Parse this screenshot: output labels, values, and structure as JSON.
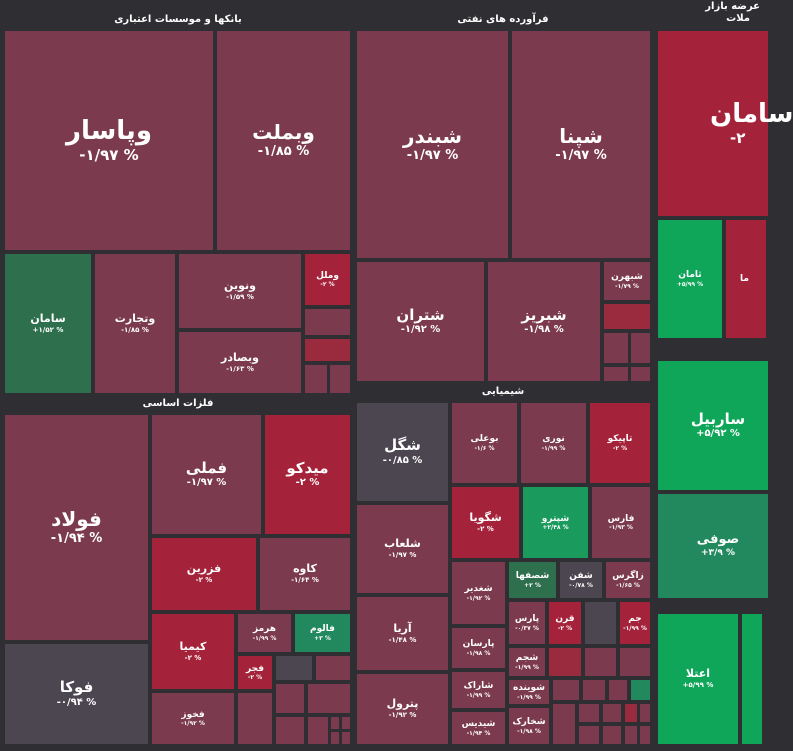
{
  "sections": {
    "banks": "بانکها و موسسات اعتباری",
    "oil": "فرآورده های نفتی",
    "market": "عرضه بازار",
    "market2": "ملات",
    "metals": "فلزات اساسی",
    "chem": "شیمیایی"
  },
  "tiles": {
    "vapasar": {
      "name": "وپاسار",
      "pct": "-۱/۹۷ %"
    },
    "vbemellat": {
      "name": "وبملت",
      "pct": "-۱/۸۵ %"
    },
    "saman": {
      "name": "سامان",
      "pct": "+۱/۵۲ %"
    },
    "vtejarat": {
      "name": "وتجارت",
      "pct": "-۱/۸۵ %"
    },
    "vnovin": {
      "name": "ونوین",
      "pct": "-۱/۵۹ %"
    },
    "vmellal": {
      "name": "وملل",
      "pct": "-۲ %"
    },
    "vbsader": {
      "name": "وبصادر",
      "pct": "-۱/۶۳ %"
    },
    "shbandar": {
      "name": "شبندر",
      "pct": "-۱/۹۷ %"
    },
    "shpena": {
      "name": "شپنا",
      "pct": "-۱/۹۷ %"
    },
    "shtran": {
      "name": "شتران",
      "pct": "-۱/۹۲ %"
    },
    "shbriz": {
      "name": "شبریز",
      "pct": "-۱/۹۸ %"
    },
    "shbahran": {
      "name": "شبهرن",
      "pct": "-۱/۷۹ %"
    },
    "saman_big": {
      "name": "سامان",
      "pct": "-۲"
    },
    "taman": {
      "name": "ثامان",
      "pct": "+۵/۹۹ %"
    },
    "foolad": {
      "name": "فولاد",
      "pct": "-۱/۹۴ %"
    },
    "fameli": {
      "name": "فملی",
      "pct": "-۱/۹۷ %"
    },
    "midko": {
      "name": "میدکو",
      "pct": "-۲ %"
    },
    "fozarin": {
      "name": "فزرین",
      "pct": "-۲ %"
    },
    "kaveh": {
      "name": "کاوه",
      "pct": "-۱/۶۴ %"
    },
    "foka": {
      "name": "فوکا",
      "pct": "-۰/۹۴ %"
    },
    "kimia": {
      "name": "کیمیا",
      "pct": "-۲ %"
    },
    "hormoz": {
      "name": "هرمز",
      "pct": "-۱/۹۹ %"
    },
    "falum": {
      "name": "فالوم",
      "pct": "+۳ %"
    },
    "fajr": {
      "name": "فجر",
      "pct": "-۲ %"
    },
    "fakhooz": {
      "name": "فخوز",
      "pct": "-۱/۹۲ %"
    },
    "shegol": {
      "name": "شگل",
      "pct": "-۰/۸۵ %"
    },
    "booali": {
      "name": "بوعلی",
      "pct": "-۱/۶ %"
    },
    "noori": {
      "name": "نوری",
      "pct": "-۱/۹۹ %"
    },
    "tapiko": {
      "name": "تاپیکو",
      "pct": "-۲ %"
    },
    "shgooya": {
      "name": "شگویا",
      "pct": "-۲ %"
    },
    "shapetro": {
      "name": "شپترو",
      "pct": "+۲/۴۸ %"
    },
    "fars": {
      "name": "فارس",
      "pct": "-۱/۹۳ %"
    },
    "shelab": {
      "name": "شلعاب",
      "pct": "-۱/۹۷ %"
    },
    "shasfaha": {
      "name": "شصفها",
      "pct": "+۲ %"
    },
    "shefan": {
      "name": "شفن",
      "pct": "-۰/۷۸ %"
    },
    "zagros": {
      "name": "زاگرس",
      "pct": "-۱/۶۵ %"
    },
    "shghadir": {
      "name": "شغدیر",
      "pct": "-۱/۹۲ %"
    },
    "pars": {
      "name": "پارس",
      "pct": "-۰/۳۷ %"
    },
    "qarn": {
      "name": "قرن",
      "pct": "-۲ %"
    },
    "jam": {
      "name": "جم",
      "pct": "-۱/۹۹ %"
    },
    "arya": {
      "name": "آریا",
      "pct": "-۱/۴۸ %"
    },
    "parsan": {
      "name": "پارسان",
      "pct": "-۱/۹۸ %"
    },
    "shjam": {
      "name": "شجم",
      "pct": "-۱/۹۹ %"
    },
    "sharak": {
      "name": "شاراک",
      "pct": "-۱/۹۹ %"
    },
    "shavineh": {
      "name": "شوینده",
      "pct": "-۱/۹۹ %"
    },
    "petrol": {
      "name": "پترول",
      "pct": "-۱/۹۲ %"
    },
    "shidis": {
      "name": "شیدیس",
      "pct": "-۱/۹۴ %"
    },
    "shkhark": {
      "name": "شخارک",
      "pct": "-۱/۹۸ %"
    },
    "sarbil": {
      "name": "ساربیل",
      "pct": "+۵/۹۲ %"
    },
    "soufi": {
      "name": "صوفی",
      "pct": "+۳/۹ %"
    },
    "atala": {
      "name": "اعتلا",
      "pct": "+۵/۹۹ %"
    },
    "ma_partial": {
      "name": "ما",
      "pct": ""
    }
  }
}
